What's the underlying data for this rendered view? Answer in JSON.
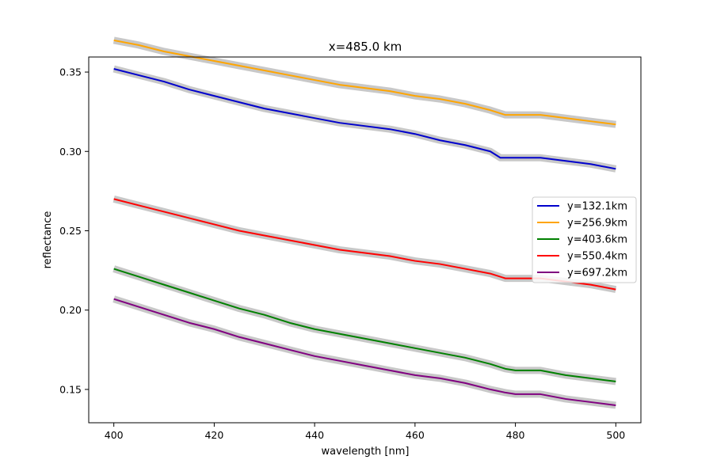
{
  "chart_data": {
    "type": "line",
    "title": "x=485.0 km",
    "xlabel": "wavelength [nm]",
    "ylabel": "reflectance",
    "xlim": [
      395,
      505
    ],
    "ylim": [
      0.129,
      0.3595
    ],
    "xticks": [
      400,
      420,
      440,
      460,
      480,
      500
    ],
    "xtick_labels": [
      "400",
      "420",
      "440",
      "460",
      "480",
      "500"
    ],
    "yticks": [
      0.15,
      0.2,
      0.25,
      0.3,
      0.35
    ],
    "ytick_labels": [
      "0.15",
      "0.20",
      "0.25",
      "0.30",
      "0.35"
    ],
    "grid": false,
    "legend_position": "center-right",
    "uncertainty_band_color": "#c8c8c8",
    "series": [
      {
        "name": "y=132.1km",
        "color": "#0000cc",
        "x": [
          400,
          405,
          410,
          415,
          420,
          425,
          430,
          435,
          440,
          445,
          450,
          455,
          460,
          465,
          470,
          475,
          477,
          480,
          485,
          490,
          495,
          500
        ],
        "y": [
          0.352,
          0.348,
          0.344,
          0.339,
          0.335,
          0.331,
          0.327,
          0.324,
          0.321,
          0.318,
          0.316,
          0.314,
          0.311,
          0.307,
          0.304,
          0.3,
          0.296,
          0.296,
          0.296,
          0.294,
          0.292,
          0.289
        ]
      },
      {
        "name": "y=256.9km",
        "color": "#ffa500",
        "x": [
          400,
          405,
          410,
          415,
          420,
          425,
          430,
          435,
          440,
          445,
          450,
          455,
          460,
          465,
          470,
          475,
          478,
          480,
          485,
          490,
          495,
          500
        ],
        "y": [
          0.37,
          0.367,
          0.363,
          0.36,
          0.357,
          0.354,
          0.351,
          0.348,
          0.345,
          0.342,
          0.34,
          0.338,
          0.335,
          0.333,
          0.33,
          0.326,
          0.323,
          0.323,
          0.323,
          0.321,
          0.319,
          0.317
        ]
      },
      {
        "name": "y=403.6km",
        "color": "#008000",
        "x": [
          400,
          405,
          410,
          415,
          420,
          425,
          430,
          435,
          440,
          445,
          450,
          455,
          460,
          465,
          470,
          475,
          478,
          480,
          485,
          490,
          495,
          500
        ],
        "y": [
          0.226,
          0.221,
          0.216,
          0.211,
          0.206,
          0.201,
          0.197,
          0.192,
          0.188,
          0.185,
          0.182,
          0.179,
          0.176,
          0.173,
          0.17,
          0.166,
          0.163,
          0.162,
          0.162,
          0.159,
          0.157,
          0.155
        ]
      },
      {
        "name": "y=550.4km",
        "color": "#ff0000",
        "x": [
          400,
          405,
          410,
          415,
          420,
          425,
          430,
          435,
          440,
          445,
          450,
          455,
          460,
          465,
          470,
          475,
          478,
          480,
          485,
          490,
          495,
          500
        ],
        "y": [
          0.27,
          0.266,
          0.262,
          0.258,
          0.254,
          0.25,
          0.247,
          0.244,
          0.241,
          0.238,
          0.236,
          0.234,
          0.231,
          0.229,
          0.226,
          0.223,
          0.22,
          0.22,
          0.22,
          0.218,
          0.216,
          0.213
        ]
      },
      {
        "name": "y=697.2km",
        "color": "#800080",
        "x": [
          400,
          405,
          410,
          415,
          420,
          425,
          430,
          435,
          440,
          445,
          450,
          455,
          460,
          465,
          470,
          475,
          478,
          480,
          485,
          490,
          495,
          500
        ],
        "y": [
          0.207,
          0.202,
          0.197,
          0.192,
          0.188,
          0.183,
          0.179,
          0.175,
          0.171,
          0.168,
          0.165,
          0.162,
          0.159,
          0.157,
          0.154,
          0.15,
          0.148,
          0.147,
          0.147,
          0.144,
          0.142,
          0.14
        ]
      }
    ]
  }
}
